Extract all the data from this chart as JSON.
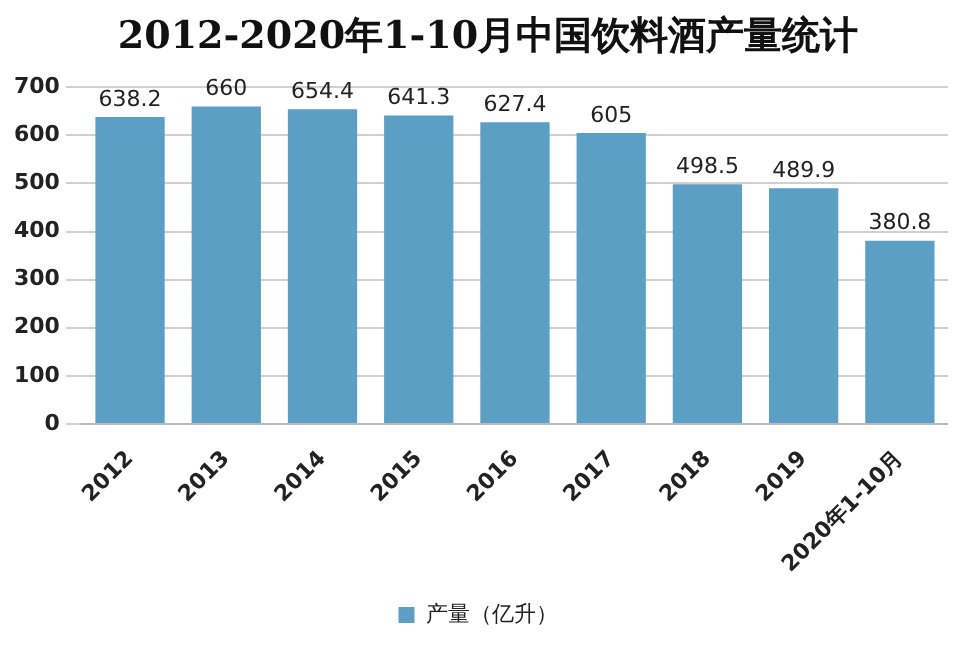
{
  "chart_data": {
    "type": "bar",
    "title": "2012-2020年1-10月中国饮料酒产量统计",
    "categories": [
      "2012",
      "2013",
      "2014",
      "2015",
      "2016",
      "2017",
      "2018",
      "2019",
      "2020年1-10月"
    ],
    "series": [
      {
        "name": "产量（亿升）",
        "color": "#5b9fc4",
        "values": [
          638.2,
          660,
          654.4,
          641.3,
          627.4,
          605,
          498.5,
          489.9,
          380.8
        ]
      }
    ],
    "ylim": [
      0,
      700
    ],
    "yticks": [
      0,
      100,
      200,
      300,
      400,
      500,
      600,
      700
    ],
    "grid": "y",
    "legend": "bottom",
    "data_labels": true
  }
}
